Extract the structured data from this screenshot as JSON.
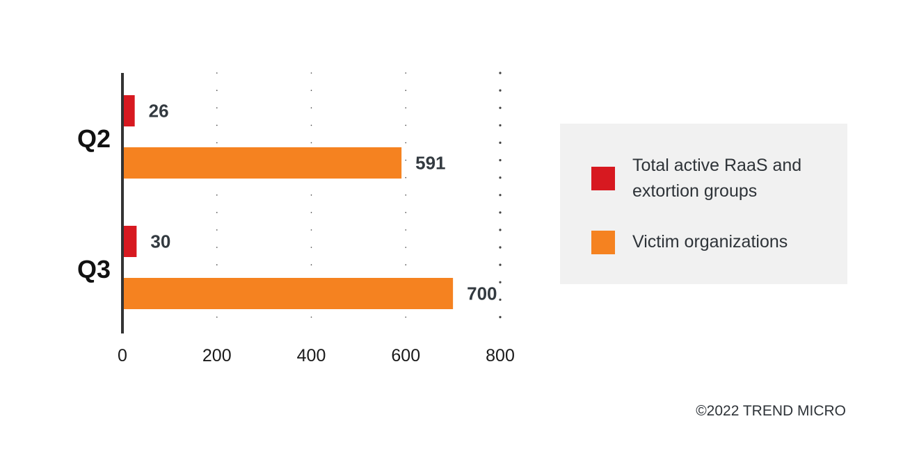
{
  "chart_data": {
    "type": "bar",
    "orientation": "horizontal",
    "categories": [
      "Q2",
      "Q3"
    ],
    "series": [
      {
        "name": "Total active RaaS and extortion groups",
        "values": [
          26,
          30
        ],
        "color": "#d71920"
      },
      {
        "name": "Victim organizations",
        "values": [
          591,
          700
        ],
        "color": "#f58220"
      }
    ],
    "x_ticks": [
      "0",
      "200",
      "400",
      "600",
      "800"
    ],
    "xlim": [
      0,
      800
    ],
    "grid": "dotted vertical",
    "legend_position": "right",
    "axis_color": "#333333"
  },
  "legend": {
    "items": [
      {
        "label": "Total active RaaS and extortion groups",
        "color": "#d71920"
      },
      {
        "label": "Victim organizations",
        "color": "#f58220"
      }
    ]
  },
  "footer": {
    "copyright": "©2022 TREND MICRO"
  }
}
